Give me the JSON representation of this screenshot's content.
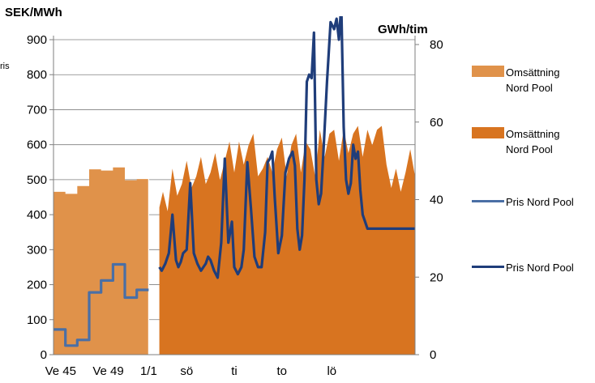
{
  "chart_data": {
    "type": "area",
    "ylabel_left": "SEK/MWh",
    "ylabel_right": "GWh/tim",
    "partial_label": "ris",
    "ylim_left": [
      0,
      900
    ],
    "yticks_left": [
      "0",
      "100",
      "200",
      "300",
      "400",
      "500",
      "600",
      "700",
      "800",
      "900"
    ],
    "ylim_right": [
      0,
      84
    ],
    "yticks_right": [
      "0",
      "20",
      "40",
      "60",
      "80"
    ],
    "x_tick_labels": [
      "Ve 45",
      "Ve 49",
      "1/1",
      "sö",
      "ti",
      "to",
      "lö"
    ],
    "grid": "horizontal",
    "legend_position": "right",
    "colors": {
      "weekly_area": "#e0924a",
      "hourly_area": "#d87420",
      "weekly_line": "#4a6fa5",
      "hourly_line": "#1f3d7a",
      "divider": "#ffffff"
    },
    "series": [
      {
        "name": "Omsättning Nord Pool",
        "legend_text": [
          "Omsättning",
          "Nord Pool"
        ],
        "kind": "area",
        "axis": "right",
        "style": "weekly_area",
        "x": [
          0,
          1,
          2,
          3,
          4,
          5,
          6,
          7,
          8
        ],
        "values": [
          42,
          41.5,
          43.5,
          47.8,
          47.5,
          48.3,
          45,
          45.3,
          45.4
        ]
      },
      {
        "name": "Omsättning Nord Pool",
        "legend_text": [
          "Omsättning",
          "Nord Pool"
        ],
        "kind": "area",
        "axis": "right",
        "style": "hourly_area",
        "x": [
          8.9,
          9.2,
          9.6,
          10.0,
          10.4,
          10.8,
          11.2,
          11.6,
          12.0,
          12.4,
          12.8,
          13.2,
          13.6,
          14.0,
          14.4,
          14.8,
          15.2,
          15.6,
          16.0,
          16.4,
          16.8,
          17.2,
          17.6,
          18.0,
          18.4,
          18.8,
          19.2,
          19.6,
          20.0,
          20.4,
          20.8,
          21.2,
          21.6,
          22.0,
          22.4,
          22.8,
          23.2,
          23.6,
          24.0,
          24.4,
          24.8,
          25.2,
          25.6,
          26.0,
          26.4,
          26.8,
          27.2,
          27.6,
          28.0,
          28.4,
          28.8,
          29.2,
          29.6,
          30.0,
          30.4
        ],
        "values": [
          38,
          42,
          37,
          48,
          41,
          44,
          50,
          43,
          46,
          51,
          44,
          47,
          52,
          45,
          50,
          55,
          47,
          55,
          49,
          54,
          57,
          46,
          48,
          51,
          47,
          53,
          56,
          46,
          54,
          57,
          47,
          55,
          53,
          46,
          58,
          51,
          57,
          58,
          50,
          58,
          52,
          57,
          59,
          51,
          58,
          54,
          58,
          59,
          49,
          43,
          48,
          42,
          47,
          53,
          46
        ]
      },
      {
        "name": "Pris Nord Pool",
        "kind": "line",
        "axis": "left",
        "style": "weekly_line",
        "x": [
          0,
          1,
          1,
          2,
          2,
          3,
          3,
          4,
          4,
          5,
          5,
          6,
          6,
          7,
          7,
          8,
          8
        ],
        "values": [
          72,
          72,
          26,
          26,
          42,
          42,
          178,
          178,
          212,
          212,
          258,
          258,
          163,
          163,
          185,
          185,
          185
        ]
      },
      {
        "name": "Pris Nord Pool",
        "kind": "line",
        "axis": "left",
        "style": "hourly_line",
        "x": [
          8.9,
          9.1,
          9.4,
          9.7,
          10.0,
          10.3,
          10.5,
          10.7,
          10.9,
          11.2,
          11.5,
          11.8,
          12.1,
          12.4,
          12.6,
          12.8,
          13.0,
          13.2,
          13.5,
          13.8,
          14.1,
          14.4,
          14.7,
          15.0,
          15.2,
          15.5,
          15.8,
          16.0,
          16.3,
          16.6,
          16.9,
          17.2,
          17.5,
          17.8,
          18.0,
          18.2,
          18.4,
          18.6,
          18.9,
          19.2,
          19.5,
          19.8,
          20.1,
          20.3,
          20.5,
          20.7,
          20.9,
          21.1,
          21.3,
          21.5,
          21.7,
          21.9,
          22.1,
          22.3,
          22.5,
          22.7,
          23.0,
          23.3,
          23.6,
          23.8,
          24.0,
          24.2,
          24.4,
          24.6,
          24.8,
          25.0,
          25.2,
          25.4,
          25.6,
          25.8,
          26.0,
          26.2,
          26.4,
          26.6,
          26.8,
          27.0,
          27.2,
          27.4,
          27.6,
          27.8,
          28.0,
          28.2,
          28.5,
          28.8,
          29.1,
          29.4,
          29.7,
          30.0,
          30.2,
          30.4
        ],
        "values": [
          250,
          240,
          260,
          290,
          400,
          270,
          250,
          265,
          290,
          300,
          490,
          290,
          260,
          240,
          250,
          260,
          280,
          270,
          240,
          220,
          320,
          560,
          320,
          380,
          250,
          230,
          250,
          300,
          550,
          420,
          280,
          250,
          250,
          350,
          550,
          560,
          580,
          450,
          290,
          340,
          520,
          560,
          580,
          540,
          360,
          300,
          340,
          500,
          780,
          800,
          790,
          920,
          500,
          430,
          460,
          580,
          780,
          950,
          930,
          960,
          900,
          1000,
          650,
          500,
          460,
          490,
          600,
          560,
          580,
          470,
          400,
          380,
          360,
          360,
          360,
          360,
          360,
          360,
          360,
          360,
          360,
          360,
          360,
          360,
          360,
          360,
          360,
          360,
          360,
          360
        ]
      }
    ]
  }
}
